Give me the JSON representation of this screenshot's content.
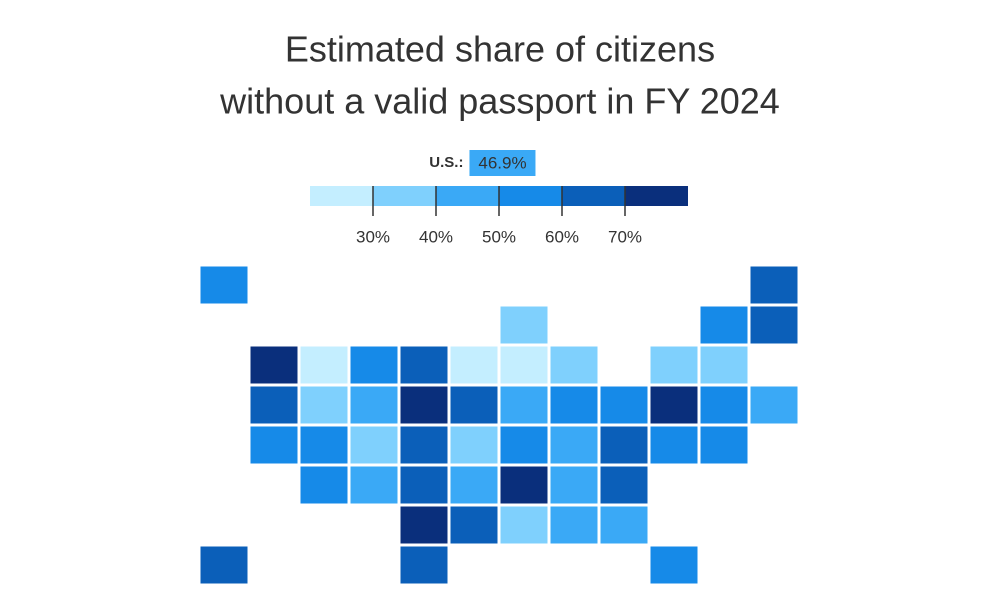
{
  "chart_data": {
    "type": "choropleth",
    "title": [
      "Estimated share of citizens",
      "without a valid passport in FY 2024"
    ],
    "us_label": "U.S.:",
    "us_value": 46.9,
    "us_value_label": "46.9%",
    "legend_ticks": [
      {
        "value": 30,
        "label": "30%"
      },
      {
        "value": 40,
        "label": "40%"
      },
      {
        "value": 50,
        "label": "50%"
      },
      {
        "value": 60,
        "label": "60%"
      },
      {
        "value": 70,
        "label": "70%"
      }
    ],
    "legend_lim": [
      20,
      80
    ],
    "colors": [
      "#c4eeff",
      "#7fd0fd",
      "#3aa9f6",
      "#168ae8",
      "#0b5fb9",
      "#0a2f7c"
    ],
    "values": [
      45,
      55,
      55,
      45,
      55,
      35,
      55,
      55,
      55,
      45,
      65,
      27,
      27,
      45,
      65,
      65,
      55,
      65,
      65,
      55,
      35,
      35,
      27,
      35,
      35,
      55,
      65,
      35,
      65,
      75,
      45,
      35,
      45,
      65,
      55,
      75,
      65,
      55,
      45,
      65,
      75,
      75,
      65,
      55,
      55,
      65,
      75,
      45,
      35,
      45
    ]
  }
}
